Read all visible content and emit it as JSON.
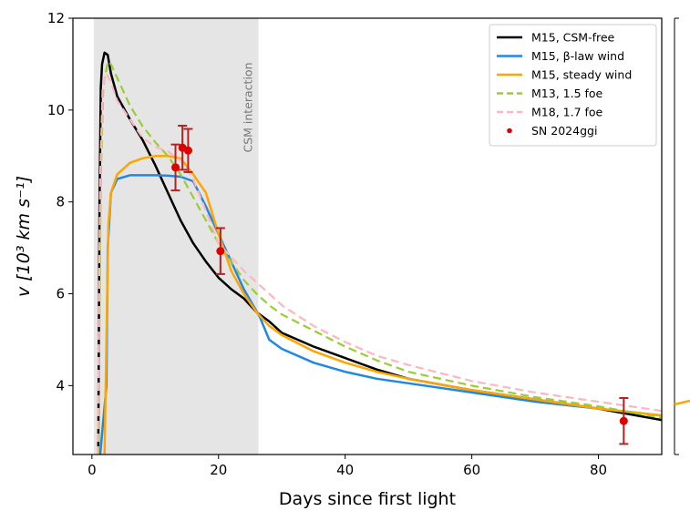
{
  "chart_data": {
    "type": "line",
    "xlabel": "Days since first light",
    "ylabel": "v [10³ km s⁻¹]",
    "xlim": [
      -3,
      90
    ],
    "ylim": [
      2.5,
      12
    ],
    "xticks": [
      0,
      20,
      40,
      60,
      80
    ],
    "yticks": [
      4,
      6,
      8,
      10,
      12
    ],
    "shaded_region": {
      "x": [
        0.3,
        26.3
      ],
      "color": "#e5e5e5",
      "label": "CSM interaction"
    },
    "legend_position": "top-right",
    "series": [
      {
        "name": "M15, CSM-free",
        "color": "#000000",
        "dash": "solid",
        "x": [
          1.0,
          1.2,
          1.4,
          1.6,
          2.0,
          2.5,
          3.0,
          4.0,
          6.0,
          8.0,
          10.0,
          12.0,
          14.0,
          16.0,
          18.0,
          20.0,
          22.0,
          24.0,
          26.0,
          28.0,
          30.0,
          35.0,
          40.0,
          45.0,
          50.0,
          60.0,
          70.0,
          80.0,
          90.0
        ],
        "y": [
          2.5,
          8.0,
          10.5,
          11.0,
          11.25,
          11.2,
          10.8,
          10.3,
          9.8,
          9.35,
          8.8,
          8.2,
          7.6,
          7.1,
          6.7,
          6.35,
          6.1,
          5.9,
          5.6,
          5.4,
          5.15,
          4.85,
          4.6,
          4.35,
          4.15,
          3.9,
          3.7,
          3.5,
          3.25
        ]
      },
      {
        "name": "M15, β-law wind",
        "color": "#1f88e5",
        "dash": "solid",
        "x": [
          1.3,
          2.3,
          2.5,
          3.0,
          4.0,
          6.0,
          8.0,
          10.0,
          12.0,
          14.0,
          16.0,
          18.0,
          20.0,
          22.0,
          24.0,
          26.5,
          28.0,
          30.0,
          35.0,
          40.0,
          45.0,
          50.0,
          60.0,
          70.0,
          80.0,
          90.0
        ],
        "y": [
          2.5,
          4.0,
          7.0,
          8.2,
          8.5,
          8.58,
          8.58,
          8.58,
          8.57,
          8.55,
          8.45,
          7.9,
          7.3,
          6.7,
          6.1,
          5.5,
          5.0,
          4.8,
          4.5,
          4.3,
          4.15,
          4.05,
          3.85,
          3.65,
          3.5,
          3.35
        ]
      },
      {
        "name": "M15, steady wind",
        "color": "#ffa500",
        "dash": "solid",
        "x": [
          2.0,
          2.3,
          2.6,
          3.0,
          4.0,
          6.0,
          8.0,
          10.0,
          12.0,
          14.0,
          16.0,
          18.0,
          20.0,
          22.0,
          24.0,
          26.0,
          28.0,
          30.0,
          35.0,
          40.0,
          45.0,
          50.0,
          60.0,
          70.0,
          80.0,
          90.0
        ],
        "y": [
          2.5,
          5.0,
          7.5,
          8.2,
          8.6,
          8.85,
          8.95,
          9.0,
          9.0,
          8.95,
          8.6,
          8.2,
          7.3,
          6.5,
          6.0,
          5.6,
          5.3,
          5.1,
          4.75,
          4.5,
          4.3,
          4.15,
          3.9,
          3.7,
          3.5,
          3.35
        ]
      },
      {
        "name": "M13, 1.5 foe",
        "color": "#9acd32",
        "dash": "dashed",
        "x": [
          1.0,
          1.4,
          1.8,
          2.5,
          3.0,
          4.0,
          6.0,
          8.0,
          10.0,
          12.0,
          14.0,
          16.0,
          18.0,
          20.0,
          22.0,
          24.0,
          26.0,
          28.0,
          30.0,
          35.0,
          40.0,
          45.0,
          50.0,
          60.0,
          70.0,
          80.0,
          90.0
        ],
        "y": [
          2.5,
          8.5,
          10.5,
          11.05,
          11.0,
          10.7,
          10.1,
          9.65,
          9.3,
          9.0,
          8.6,
          8.1,
          7.6,
          7.1,
          6.7,
          6.3,
          6.0,
          5.75,
          5.55,
          5.2,
          4.85,
          4.55,
          4.3,
          4.0,
          3.75,
          3.55,
          3.3
        ]
      },
      {
        "name": "M18, 1.7 foe",
        "color": "#ffb6c1",
        "dash": "dashed",
        "x": [
          0.9,
          1.3,
          1.7,
          2.3,
          3.0,
          4.0,
          6.0,
          8.0,
          10.0,
          12.0,
          14.0,
          16.0,
          18.0,
          20.0,
          22.0,
          24.0,
          26.0,
          28.0,
          30.0,
          35.0,
          40.0,
          45.0,
          50.0,
          60.0,
          70.0,
          80.0,
          90.0
        ],
        "y": [
          2.5,
          8.5,
          10.5,
          10.8,
          10.6,
          10.2,
          9.8,
          9.4,
          9.2,
          9.1,
          8.9,
          8.5,
          7.8,
          7.1,
          6.8,
          6.5,
          6.25,
          6.0,
          5.75,
          5.3,
          4.95,
          4.65,
          4.45,
          4.1,
          3.85,
          3.65,
          3.45
        ]
      }
    ],
    "observations": {
      "name": "SN 2024ggi",
      "color": "#dd0000",
      "errorbar_color": "#b22222",
      "points": [
        {
          "x": 13.2,
          "y": 8.75,
          "err": 0.5
        },
        {
          "x": 14.3,
          "y": 9.18,
          "err": 0.48
        },
        {
          "x": 15.2,
          "y": 9.12,
          "err": 0.47
        },
        {
          "x": 20.3,
          "y": 6.93,
          "err": 0.5
        },
        {
          "x": 84.0,
          "y": 3.23,
          "err": 0.5
        }
      ]
    }
  }
}
